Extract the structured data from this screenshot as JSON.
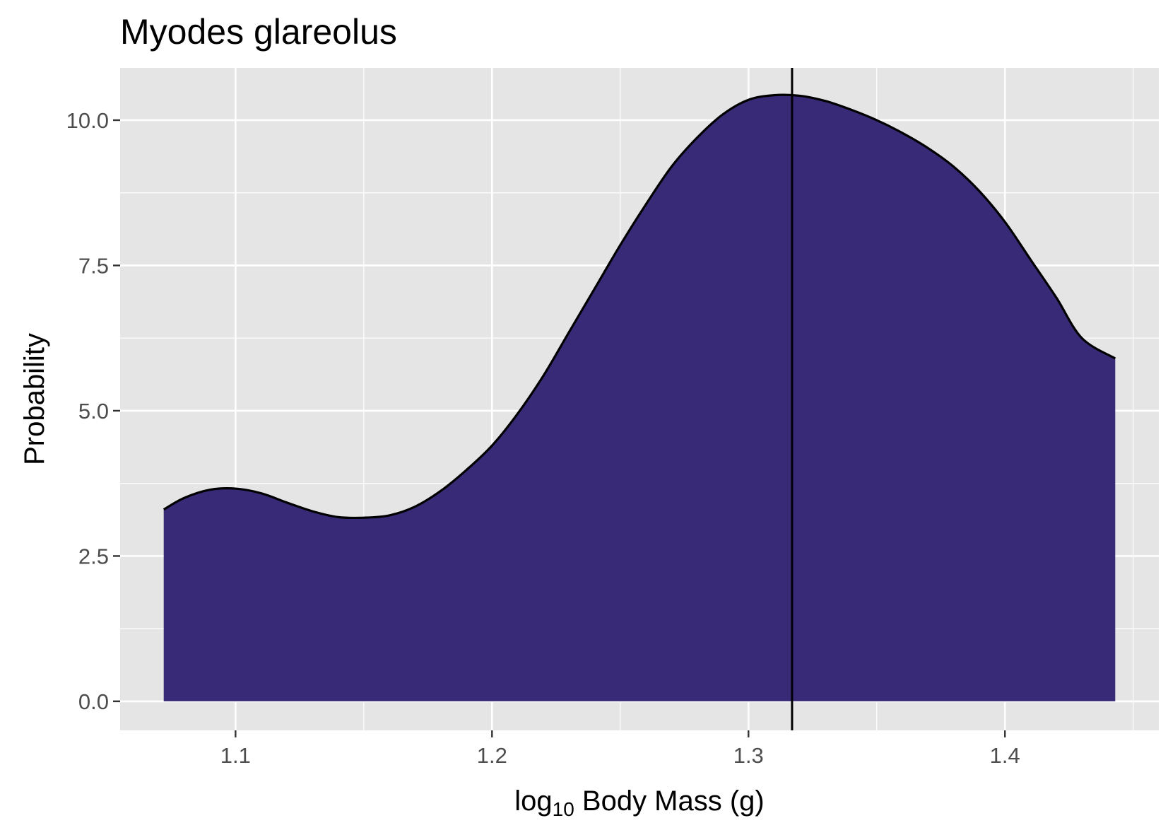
{
  "chart_data": {
    "type": "area",
    "title": "Myodes glareolus",
    "xlabel": {
      "prefix": "log",
      "subscript": "10",
      "rest": " Body Mass (g)"
    },
    "ylabel": "Probability",
    "xlim": [
      1.055,
      1.46
    ],
    "ylim": [
      -0.5,
      10.9
    ],
    "x_ticks": [
      {
        "value": 1.1,
        "label": "1.1"
      },
      {
        "value": 1.2,
        "label": "1.2"
      },
      {
        "value": 1.3,
        "label": "1.3"
      },
      {
        "value": 1.4,
        "label": "1.4"
      }
    ],
    "y_ticks": [
      {
        "value": 0.0,
        "label": "0.0"
      },
      {
        "value": 2.5,
        "label": "2.5"
      },
      {
        "value": 5.0,
        "label": "5.0"
      },
      {
        "value": 7.5,
        "label": "7.5"
      },
      {
        "value": 10.0,
        "label": "10.0"
      }
    ],
    "x_minor": [
      1.15,
      1.25,
      1.35,
      1.45
    ],
    "y_minor": [
      1.25,
      3.75,
      6.25,
      8.75
    ],
    "grid": true,
    "panel_background": "#e5e5e5",
    "grid_color": "#ffffff",
    "fill_color": "#382a77",
    "line_color": "#000000",
    "vline_x": 1.317,
    "series": [
      {
        "x": [
          1.072,
          1.08,
          1.09,
          1.1,
          1.11,
          1.12,
          1.13,
          1.14,
          1.15,
          1.16,
          1.17,
          1.18,
          1.19,
          1.2,
          1.21,
          1.22,
          1.23,
          1.24,
          1.25,
          1.26,
          1.27,
          1.28,
          1.29,
          1.3,
          1.31,
          1.32,
          1.33,
          1.34,
          1.35,
          1.36,
          1.37,
          1.38,
          1.39,
          1.4,
          1.41,
          1.42,
          1.43,
          1.443
        ],
        "y": [
          3.3,
          3.5,
          3.64,
          3.66,
          3.58,
          3.42,
          3.27,
          3.17,
          3.16,
          3.2,
          3.35,
          3.62,
          3.98,
          4.4,
          4.95,
          5.6,
          6.35,
          7.1,
          7.85,
          8.55,
          9.2,
          9.7,
          10.1,
          10.35,
          10.43,
          10.42,
          10.33,
          10.18,
          10.0,
          9.78,
          9.52,
          9.2,
          8.78,
          8.25,
          7.6,
          6.95,
          6.25,
          5.9
        ]
      }
    ]
  }
}
